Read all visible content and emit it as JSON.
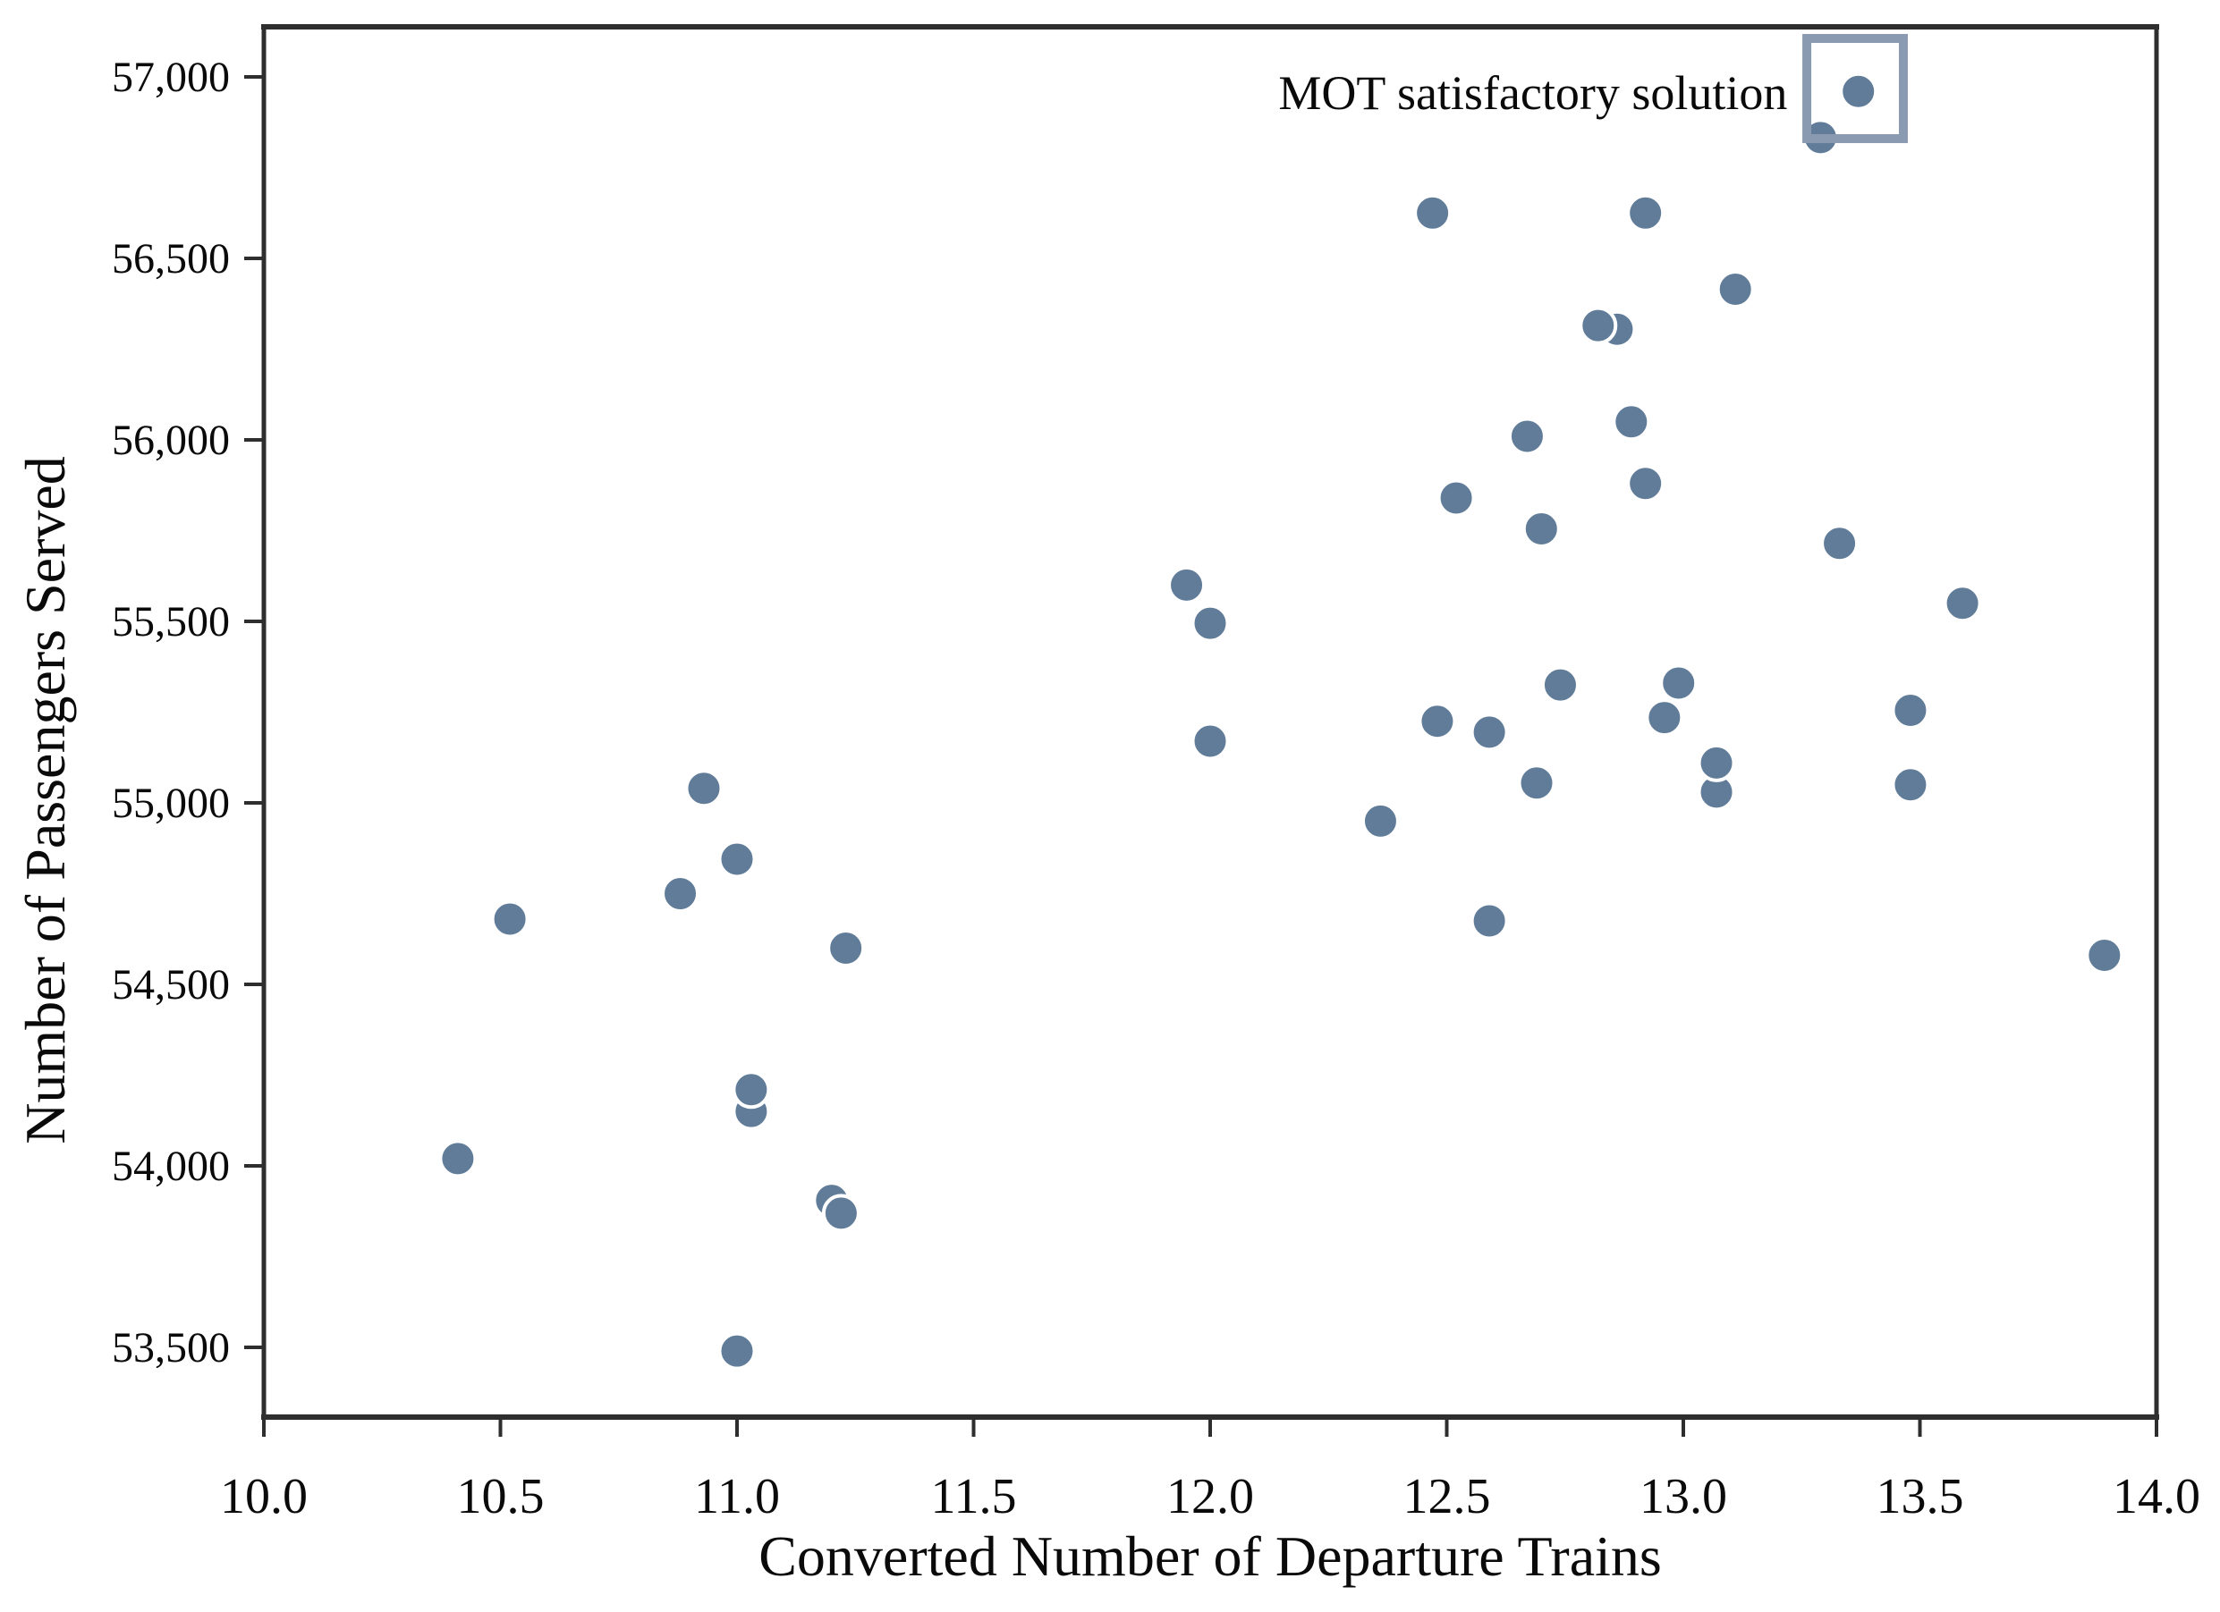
{
  "figure": {
    "background_color": "#ffffff",
    "axis_color": "#2e2e2e",
    "text_color": "#0a0a0a"
  },
  "chart_data": {
    "type": "scatter",
    "title": "",
    "xlabel": "Converted Number of Departure Trains",
    "ylabel": "Number of Passengers Served",
    "xlim": [
      10.0,
      14.0
    ],
    "ylim": [
      53308,
      57138
    ],
    "grid": false,
    "legend_position": "none",
    "x_ticks": [
      10.0,
      10.5,
      11.0,
      11.5,
      12.0,
      12.5,
      13.0,
      13.5,
      14.0
    ],
    "x_tick_labels": [
      "10.0",
      "10.5",
      "11.0",
      "11.5",
      "12.0",
      "12.5",
      "13.0",
      "13.5",
      "14.0"
    ],
    "y_ticks": [
      53500,
      54000,
      54500,
      55000,
      55500,
      56000,
      56500,
      57000
    ],
    "y_tick_labels": [
      "53,500",
      "54,000",
      "54,500",
      "55,000",
      "55,500",
      "56,000",
      "56,500",
      "57,000"
    ],
    "marker": {
      "shape": "circle",
      "color": "#617c99",
      "radius": 19.5,
      "edge_color": "#ffffff",
      "edge_width": 4
    },
    "points": [
      [
        10.41,
        54020
      ],
      [
        10.52,
        54680
      ],
      [
        10.88,
        54750
      ],
      [
        10.93,
        55040
      ],
      [
        11.0,
        54845
      ],
      [
        11.03,
        54150
      ],
      [
        11.03,
        54210
      ],
      [
        11.0,
        53490
      ],
      [
        11.2,
        53905
      ],
      [
        11.22,
        53870
      ],
      [
        11.23,
        54600
      ],
      [
        11.95,
        55600
      ],
      [
        12.0,
        55495
      ],
      [
        12.0,
        55170
      ],
      [
        12.36,
        54950
      ],
      [
        12.47,
        56625
      ],
      [
        12.48,
        55225
      ],
      [
        12.52,
        55840
      ],
      [
        12.59,
        55195
      ],
      [
        12.59,
        54675
      ],
      [
        12.67,
        56010
      ],
      [
        12.69,
        55055
      ],
      [
        12.7,
        55755
      ],
      [
        12.74,
        55325
      ],
      [
        12.86,
        56305
      ],
      [
        12.82,
        56315
      ],
      [
        12.89,
        56050
      ],
      [
        12.92,
        55880
      ],
      [
        12.92,
        56625
      ],
      [
        12.96,
        55235
      ],
      [
        12.99,
        55330
      ],
      [
        13.07,
        55030
      ],
      [
        13.07,
        55110
      ],
      [
        13.11,
        56415
      ],
      [
        13.29,
        56833
      ],
      [
        13.33,
        55715
      ],
      [
        13.37,
        56960
      ],
      [
        13.48,
        55255
      ],
      [
        13.48,
        55050
      ],
      [
        13.59,
        55550
      ],
      [
        13.89,
        54580
      ]
    ],
    "annotation": {
      "text": "MOT satisfactory solution",
      "anchor_x": 13.22,
      "anchor_y": 56912
    },
    "highlight_box": {
      "x0": 13.261,
      "x1": 13.465,
      "y0": 56830,
      "y1": 57106,
      "stroke": "#8a9ab0",
      "stroke_width": 10
    }
  }
}
